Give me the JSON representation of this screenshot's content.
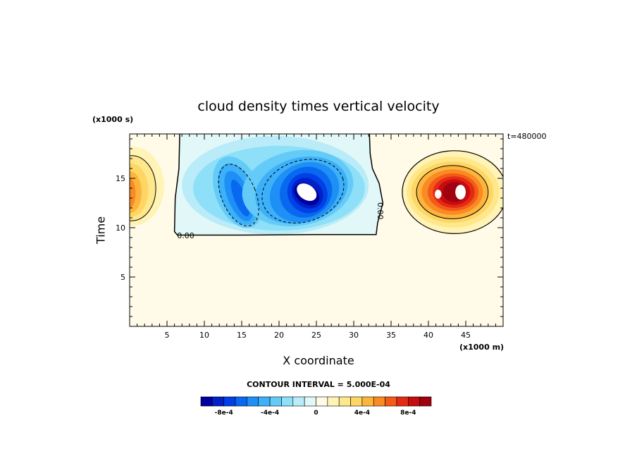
{
  "chart_data": {
    "type": "heatmap",
    "title": "cloud density times vertical velocity",
    "xlabel": "X coordinate",
    "ylabel": "Time",
    "x_unit": "(x1000 m)",
    "y_unit": "(x1000 s)",
    "time_stamp": "t=480000",
    "contour_note": "CONTOUR INTERVAL = 5.000E-04",
    "xlim": [
      0,
      50
    ],
    "ylim": [
      0,
      19.5
    ],
    "x_ticks": [
      5,
      10,
      15,
      20,
      25,
      30,
      35,
      40,
      45
    ],
    "y_ticks": [
      5,
      10,
      15
    ],
    "contour_label": "0.00",
    "colorbar": {
      "levels": [
        -0.001,
        -0.0009,
        -0.0008,
        -0.0007,
        -0.0006,
        -0.0005,
        -0.0004,
        -0.0003,
        -0.0002,
        -0.0001,
        0,
        0.0001,
        0.0002,
        0.0003,
        0.0004,
        0.0005,
        0.0006,
        0.0007,
        0.0008,
        0.0009
      ],
      "colors": [
        "#0000a0",
        "#0020c8",
        "#0040e6",
        "#0868f0",
        "#1e90f5",
        "#3cb0f8",
        "#64cbf8",
        "#8edff8",
        "#b9ecf8",
        "#e2f7f8",
        "#fffbe8",
        "#fff3b6",
        "#ffe78c",
        "#fed664",
        "#fdb43c",
        "#fa8a24",
        "#f45a18",
        "#e52a14",
        "#c60c10",
        "#a00010"
      ],
      "tick_labels": [
        "-8e-4",
        "-4e-4",
        "0",
        "4e-4",
        "8e-4"
      ],
      "tick_values": [
        -0.0008,
        -0.0004,
        0,
        0.0004,
        0.0008
      ]
    },
    "features": [
      {
        "name": "downdraft region",
        "x_range": [
          6.5,
          33
        ],
        "time_range": [
          9.2,
          19.5
        ],
        "sign": "negative",
        "min_value": -0.001,
        "min_at": [
          23.5,
          13.5
        ]
      },
      {
        "name": "updraft region right",
        "x_range": [
          35,
          50
        ],
        "time_range": [
          10,
          19
        ],
        "sign": "positive",
        "max_value": 0.001,
        "max_at": [
          44,
          13.5
        ]
      },
      {
        "name": "updraft region left",
        "x_range": [
          0,
          6
        ],
        "time_range": [
          10,
          19
        ],
        "sign": "positive",
        "max_value": 0.0006,
        "max_at": [
          0.3,
          13.5
        ]
      }
    ]
  }
}
